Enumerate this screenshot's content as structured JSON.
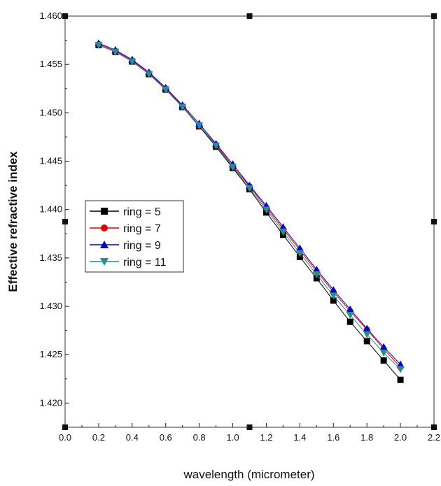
{
  "chart_data": {
    "type": "line",
    "xlabel": "wavelength (micrometer)",
    "ylabel": "Effective refractive index",
    "xlim": [
      0.0,
      2.2
    ],
    "ylim": [
      1.4175,
      1.46
    ],
    "x_ticks": [
      "0.0",
      "0.2",
      "0.4",
      "0.6",
      "0.8",
      "1.0",
      "1.2",
      "1.4",
      "1.6",
      "1.8",
      "2.0",
      "2.2"
    ],
    "y_ticks": [
      "1.420",
      "1.425",
      "1.430",
      "1.435",
      "1.440",
      "1.445",
      "1.450",
      "1.455",
      "1.460"
    ],
    "grid": false,
    "legend": {
      "position": "middle-left"
    },
    "x": [
      0.2,
      0.3,
      0.4,
      0.5,
      0.6,
      0.7,
      0.8,
      0.9,
      1.0,
      1.1,
      1.2,
      1.3,
      1.4,
      1.5,
      1.6,
      1.7,
      1.8,
      1.9,
      2.0
    ],
    "series": [
      {
        "name": "ring = 5",
        "color": "#000000",
        "marker": "square",
        "values": [
          1.457,
          1.4563,
          1.4553,
          1.454,
          1.4524,
          1.4506,
          1.4486,
          1.4465,
          1.4443,
          1.4421,
          1.4397,
          1.4374,
          1.4351,
          1.4329,
          1.4306,
          1.4284,
          1.4264,
          1.4244,
          1.4224
        ]
      },
      {
        "name": "ring = 7",
        "color": "#e00000",
        "marker": "circle",
        "values": [
          1.4571,
          1.4564,
          1.4554,
          1.4541,
          1.4525,
          1.4507,
          1.4487,
          1.4467,
          1.4445,
          1.4424,
          1.4402,
          1.438,
          1.4358,
          1.4336,
          1.4315,
          1.4295,
          1.4276,
          1.4256,
          1.4237
        ]
      },
      {
        "name": "ring = 9",
        "color": "#0000cc",
        "marker": "triangle-up",
        "values": [
          1.4572,
          1.4565,
          1.4555,
          1.4542,
          1.4526,
          1.4508,
          1.4489,
          1.4468,
          1.4447,
          1.4425,
          1.4404,
          1.4382,
          1.436,
          1.4338,
          1.4317,
          1.4297,
          1.4277,
          1.4258,
          1.424
        ]
      },
      {
        "name": "ring = 11",
        "color": "#2a8c8c",
        "marker": "triangle-down",
        "values": [
          1.457,
          1.4563,
          1.4553,
          1.454,
          1.4524,
          1.4506,
          1.4487,
          1.4466,
          1.4444,
          1.4422,
          1.44,
          1.4377,
          1.4355,
          1.4333,
          1.4311,
          1.4291,
          1.4271,
          1.4252,
          1.4235
        ]
      }
    ]
  }
}
